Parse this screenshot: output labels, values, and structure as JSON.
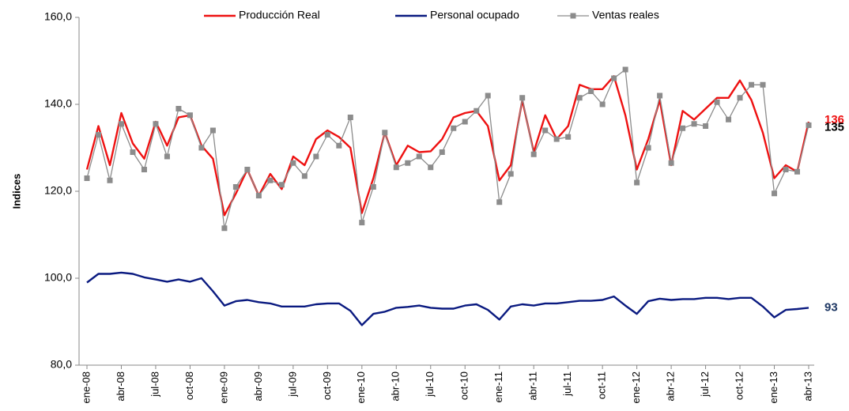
{
  "chart_data": {
    "type": "line",
    "y_label": "Indices",
    "categories": [
      "ene-08",
      null,
      null,
      "abr-08",
      null,
      null,
      "jul-08",
      null,
      null,
      "oct-08",
      null,
      null,
      "ene-09",
      null,
      null,
      "abr-09",
      null,
      null,
      "jul-09",
      null,
      null,
      "oct-09",
      null,
      null,
      "ene-10",
      null,
      null,
      "abr-10",
      null,
      null,
      "jul-10",
      null,
      null,
      "oct-10",
      null,
      null,
      "ene-11",
      null,
      null,
      "abr-11",
      null,
      null,
      "jul-11",
      null,
      null,
      "oct-11",
      null,
      null,
      "ene-12",
      null,
      null,
      "abr-12",
      null,
      null,
      "jul-12",
      null,
      null,
      "oct-12",
      null,
      null,
      "ene-13",
      null,
      null,
      "abr-13"
    ],
    "series": [
      {
        "name": "Producción Real",
        "color": "#ee1111",
        "end_label": "136",
        "end_label_color": "#ee1111",
        "values": [
          125,
          135,
          126,
          138,
          131,
          127.5,
          136,
          130.5,
          137,
          137.5,
          130.5,
          127.5,
          114.5,
          119.5,
          125,
          119,
          124,
          120.5,
          128,
          126,
          132,
          134,
          132.5,
          130,
          115,
          123,
          133.5,
          126,
          130.5,
          129,
          129.2,
          132,
          137,
          138,
          138.5,
          135,
          122.5,
          126,
          141,
          129,
          137.5,
          132,
          135,
          144.5,
          143.5,
          143.5,
          146.5,
          137.5,
          125,
          132,
          141,
          126,
          138.5,
          136.5,
          139,
          141.5,
          141.5,
          145.5,
          141,
          133.5,
          123,
          126,
          124.5,
          136
        ]
      },
      {
        "name": "Personal ocupado",
        "color": "#0a1a80",
        "end_label": "93",
        "end_label_color": "#1f3864",
        "values": [
          99,
          101,
          101,
          101.3,
          101,
          100.2,
          99.7,
          99.2,
          99.7,
          99.2,
          100,
          97,
          93.7,
          94.7,
          95,
          94.5,
          94.2,
          93.5,
          93.5,
          93.5,
          94,
          94.2,
          94.2,
          92.5,
          89.2,
          91.8,
          92.3,
          93.2,
          93.4,
          93.7,
          93.2,
          93,
          93,
          93.7,
          94,
          92.7,
          90.5,
          93.5,
          94,
          93.7,
          94.2,
          94.2,
          94.5,
          94.8,
          94.8,
          95,
          95.8,
          93.7,
          91.8,
          94.7,
          95.3,
          95,
          95.2,
          95.2,
          95.5,
          95.5,
          95.2,
          95.5,
          95.5,
          93.5,
          91,
          92.7,
          92.9,
          93.2
        ]
      },
      {
        "name": "Ventas reales",
        "color": "#8c8c8c",
        "marker": "square",
        "end_label": "135",
        "end_label_color": "#000000",
        "values": [
          123,
          133,
          122.5,
          135.5,
          129,
          125,
          135.5,
          128,
          139,
          137.5,
          130,
          134,
          111.5,
          121,
          125,
          119,
          122.5,
          121.5,
          126.5,
          123.5,
          128,
          133,
          130.5,
          137,
          112.8,
          121,
          133.5,
          125.5,
          126.5,
          128,
          125.5,
          129,
          134.5,
          136,
          138.5,
          142,
          117.5,
          124,
          141.5,
          128.5,
          134,
          132,
          132.5,
          141.5,
          143,
          140,
          146,
          148,
          122,
          130,
          142,
          126.5,
          134.5,
          135.5,
          135,
          140.5,
          136.5,
          141.5,
          144.5,
          144.5,
          119.5,
          125,
          124.5,
          135.2
        ]
      }
    ],
    "ylim": [
      80,
      160
    ],
    "yticks": [
      {
        "value": 80,
        "label": "80,0"
      },
      {
        "value": 100,
        "label": "100,0"
      },
      {
        "value": 120,
        "label": "120,0"
      },
      {
        "value": 140,
        "label": "140,0"
      },
      {
        "value": 160,
        "label": "160,0"
      }
    ],
    "grid": false,
    "legend": "top"
  }
}
